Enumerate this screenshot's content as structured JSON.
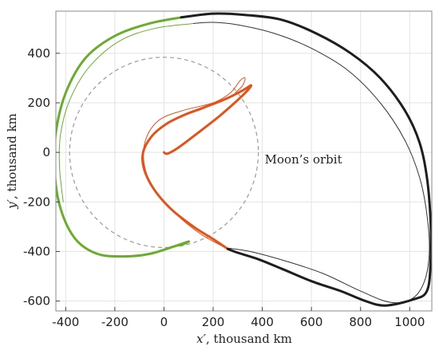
{
  "chart_data": {
    "type": "line",
    "xlabel_var": "x′",
    "xlabel_unit": ", thousand km",
    "ylabel_var": "y′",
    "ylabel_unit": ", thousand km",
    "xlim": [
      -440,
      1090
    ],
    "ylim": [
      -640,
      570
    ],
    "xticks": [
      -400,
      -200,
      0,
      200,
      400,
      600,
      800,
      1000
    ],
    "yticks": [
      -600,
      -400,
      -200,
      0,
      200,
      400
    ],
    "xtick_labels": [
      "-400",
      "-200",
      "0",
      "200",
      "400",
      "600",
      "800",
      "1000"
    ],
    "ytick_labels": [
      "-600",
      "-400",
      "-200",
      "0",
      "200",
      "400"
    ],
    "grid": true,
    "annotations": [
      {
        "text": "Moon’s orbit",
        "x": 410,
        "y": -45
      }
    ],
    "moon_orbit": {
      "center": [
        0,
        0
      ],
      "radius": 384,
      "style": "dashed",
      "color": "#9a9a9a"
    },
    "series": [
      {
        "color": "#e2531c",
        "width": "thin",
        "points": [
          [
            250,
            -385
          ],
          [
            150,
            -330
          ],
          [
            50,
            -250
          ],
          [
            -40,
            -150
          ],
          [
            -80,
            -50
          ],
          [
            -75,
            50
          ],
          [
            -20,
            130
          ],
          [
            80,
            170
          ],
          [
            200,
            200
          ],
          [
            270,
            240
          ],
          [
            310,
            290
          ],
          [
            330,
            300
          ],
          [
            320,
            270
          ],
          [
            290,
            240
          ]
        ]
      },
      {
        "color": "#6aad2e",
        "width": "thin",
        "points": [
          [
            120,
            520
          ],
          [
            -40,
            500
          ],
          [
            -180,
            450
          ],
          [
            -300,
            350
          ],
          [
            -380,
            220
          ],
          [
            -420,
            80
          ],
          [
            -425,
            -60
          ],
          [
            -410,
            -200
          ]
        ]
      },
      {
        "color": "#333333",
        "width": "thin",
        "points": [
          [
            120,
            520
          ],
          [
            200,
            525
          ],
          [
            300,
            515
          ],
          [
            450,
            480
          ],
          [
            600,
            420
          ],
          [
            750,
            330
          ],
          [
            880,
            200
          ],
          [
            980,
            50
          ],
          [
            1040,
            -100
          ],
          [
            1070,
            -250
          ],
          [
            1080,
            -400
          ],
          [
            1060,
            -520
          ],
          [
            1010,
            -590
          ],
          [
            920,
            -605
          ],
          [
            800,
            -560
          ],
          [
            650,
            -490
          ],
          [
            500,
            -440
          ],
          [
            350,
            -400
          ],
          [
            250,
            -385
          ]
        ]
      },
      {
        "color": "#e2531c",
        "width": "thick",
        "points": [
          [
            0,
            0
          ],
          [
            15,
            -5
          ],
          [
            60,
            20
          ],
          [
            140,
            80
          ],
          [
            230,
            150
          ],
          [
            320,
            230
          ],
          [
            355,
            270
          ],
          [
            320,
            250
          ],
          [
            250,
            215
          ],
          [
            160,
            180
          ],
          [
            80,
            150
          ],
          [
            10,
            115
          ],
          [
            -50,
            65
          ],
          [
            -85,
            0
          ],
          [
            -80,
            -70
          ],
          [
            -40,
            -150
          ],
          [
            30,
            -230
          ],
          [
            120,
            -300
          ],
          [
            200,
            -350
          ],
          [
            260,
            -390
          ]
        ]
      },
      {
        "color": "#6aad2e",
        "width": "thick",
        "points": [
          [
            70,
            545
          ],
          [
            -60,
            520
          ],
          [
            -200,
            470
          ],
          [
            -320,
            380
          ],
          [
            -400,
            240
          ],
          [
            -440,
            80
          ],
          [
            -445,
            -80
          ],
          [
            -420,
            -230
          ],
          [
            -360,
            -350
          ],
          [
            -270,
            -410
          ],
          [
            -160,
            -420
          ],
          [
            -60,
            -410
          ],
          [
            40,
            -380
          ],
          [
            100,
            -360
          ],
          [
            80,
            -370
          ],
          [
            60,
            -375
          ]
        ]
      },
      {
        "color": "#1e1e1e",
        "width": "thick",
        "points": [
          [
            70,
            545
          ],
          [
            200,
            560
          ],
          [
            330,
            555
          ],
          [
            480,
            535
          ],
          [
            620,
            480
          ],
          [
            760,
            400
          ],
          [
            880,
            300
          ],
          [
            980,
            170
          ],
          [
            1040,
            40
          ],
          [
            1070,
            -100
          ],
          [
            1085,
            -280
          ],
          [
            1085,
            -440
          ],
          [
            1070,
            -560
          ],
          [
            1010,
            -595
          ],
          [
            900,
            -618
          ],
          [
            820,
            -600
          ],
          [
            720,
            -560
          ],
          [
            600,
            -520
          ],
          [
            480,
            -470
          ],
          [
            380,
            -430
          ],
          [
            300,
            -405
          ],
          [
            260,
            -390
          ]
        ]
      }
    ]
  }
}
